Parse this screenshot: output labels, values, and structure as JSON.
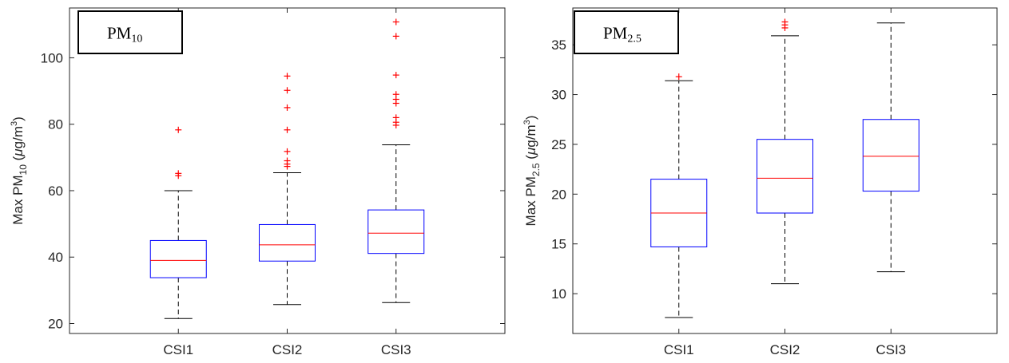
{
  "chart_data": [
    {
      "type": "box",
      "categories": [
        "CSI1",
        "CSI2",
        "CSI3"
      ],
      "ylim": [
        17,
        115
      ],
      "yticks": [
        20,
        40,
        60,
        80,
        100
      ],
      "ylabel": {
        "prefix": "Max PM",
        "sub": "10",
        "unit_open": " (",
        "mu": "μ",
        "unit_mid": "g/m",
        "sup": "3",
        "unit_close": ")"
      },
      "panel_label": {
        "main": "PM",
        "sub": "10"
      },
      "boxes": [
        {
          "category": "CSI1",
          "whisker_low": 21.5,
          "q1": 33.8,
          "median": 39.0,
          "q3": 45.0,
          "whisker_high": 60.0,
          "outliers": [
            78.3,
            65.2,
            64.5
          ]
        },
        {
          "category": "CSI2",
          "whisker_low": 25.7,
          "q1": 38.8,
          "median": 43.7,
          "q3": 49.8,
          "whisker_high": 65.4,
          "outliers": [
            94.5,
            90.2,
            85.0,
            78.3,
            71.8,
            69.0,
            68.0,
            67.3
          ]
        },
        {
          "category": "CSI3",
          "whisker_low": 26.3,
          "q1": 41.1,
          "median": 47.2,
          "q3": 54.2,
          "whisker_high": 73.8,
          "outliers": [
            110.8,
            106.5,
            94.8,
            89.0,
            87.5,
            86.3,
            82.0,
            80.6,
            79.7
          ]
        }
      ],
      "grid": false,
      "colors": {
        "box": "#0000ff",
        "median": "#ff0000",
        "whisker": "#000000",
        "outlier": "#ff0000"
      }
    },
    {
      "type": "box",
      "categories": [
        "CSI1",
        "CSI2",
        "CSI3"
      ],
      "ylim": [
        6,
        38.7
      ],
      "yticks": [
        10,
        15,
        20,
        25,
        30,
        35
      ],
      "ylabel": {
        "prefix": "Max PM",
        "sub": "2.5",
        "unit_open": " (",
        "mu": "μ",
        "unit_mid": "g/m",
        "sup": "3",
        "unit_close": ")"
      },
      "panel_label": {
        "main": "PM",
        "sub": "2.5"
      },
      "boxes": [
        {
          "category": "CSI1",
          "whisker_low": 7.6,
          "q1": 14.7,
          "median": 18.1,
          "q3": 21.5,
          "whisker_high": 31.4,
          "outliers": [
            31.8
          ]
        },
        {
          "category": "CSI2",
          "whisker_low": 11.0,
          "q1": 18.1,
          "median": 21.6,
          "q3": 25.5,
          "whisker_high": 35.9,
          "outliers": [
            37.3,
            37.0,
            36.7
          ]
        },
        {
          "category": "CSI3",
          "whisker_low": 12.2,
          "q1": 20.3,
          "median": 23.8,
          "q3": 27.5,
          "whisker_high": 37.2,
          "outliers": []
        }
      ],
      "grid": false,
      "colors": {
        "box": "#0000ff",
        "median": "#ff0000",
        "whisker": "#000000",
        "outlier": "#ff0000"
      }
    }
  ]
}
